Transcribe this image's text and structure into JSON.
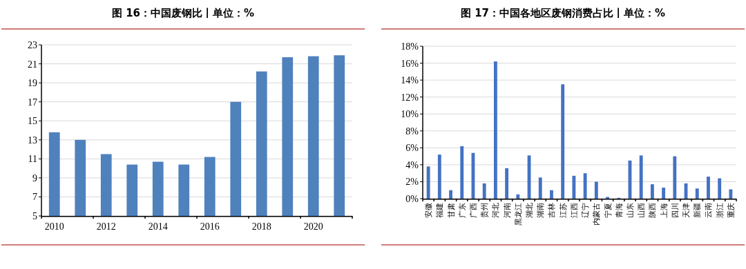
{
  "chart_data": [
    {
      "type": "bar",
      "title": "图 16：中国废钢比丨单位：%",
      "categories": [
        "2010",
        null,
        "2012",
        null,
        "2014",
        null,
        "2016",
        null,
        "2018",
        null,
        "2020",
        null
      ],
      "values": [
        13.8,
        13.0,
        11.5,
        10.4,
        10.7,
        10.4,
        11.2,
        17.0,
        20.2,
        21.7,
        21.8,
        21.9
      ],
      "color": "#4f81bd",
      "ylim": [
        5,
        23
      ],
      "yticks": [
        5,
        7,
        9,
        11,
        13,
        15,
        17,
        19,
        21,
        23
      ],
      "grid": "y"
    },
    {
      "type": "bar",
      "title": "图 17：中国各地区废钢消费占比丨单位：%",
      "categories": [
        "安徽",
        "福建",
        "甘肃",
        "广东",
        "广西",
        "贵州",
        "河北",
        "河南",
        "黑龙江",
        "湖北",
        "湖南",
        "吉林",
        "江苏",
        "江西",
        "辽宁",
        "内蒙古",
        "宁夏",
        "青海",
        "山东",
        "山西",
        "陕西",
        "上海",
        "四川",
        "天津",
        "新疆",
        "云南",
        "浙江",
        "重庆"
      ],
      "values": [
        3.8,
        5.2,
        1.0,
        6.2,
        5.4,
        1.8,
        16.2,
        3.6,
        0.5,
        5.1,
        2.5,
        1.0,
        13.5,
        2.7,
        3.0,
        2.0,
        0.2,
        0.1,
        4.5,
        5.1,
        1.7,
        1.3,
        5.0,
        1.8,
        1.2,
        2.6,
        2.4,
        1.1
      ],
      "color": "#4472c4",
      "ylim": [
        0,
        18
      ],
      "yticks": [
        {
          "value": 0,
          "label": "0%"
        },
        {
          "value": 2,
          "label": "2%"
        },
        {
          "value": 4,
          "label": "4%"
        },
        {
          "value": 6,
          "label": "6%"
        },
        {
          "value": 8,
          "label": "8%"
        },
        {
          "value": 10,
          "label": "10%"
        },
        {
          "value": 12,
          "label": "12%"
        },
        {
          "value": 14,
          "label": "14%"
        },
        {
          "value": 16,
          "label": "16%"
        },
        {
          "value": 18,
          "label": "18%"
        }
      ],
      "grid": "y"
    }
  ]
}
